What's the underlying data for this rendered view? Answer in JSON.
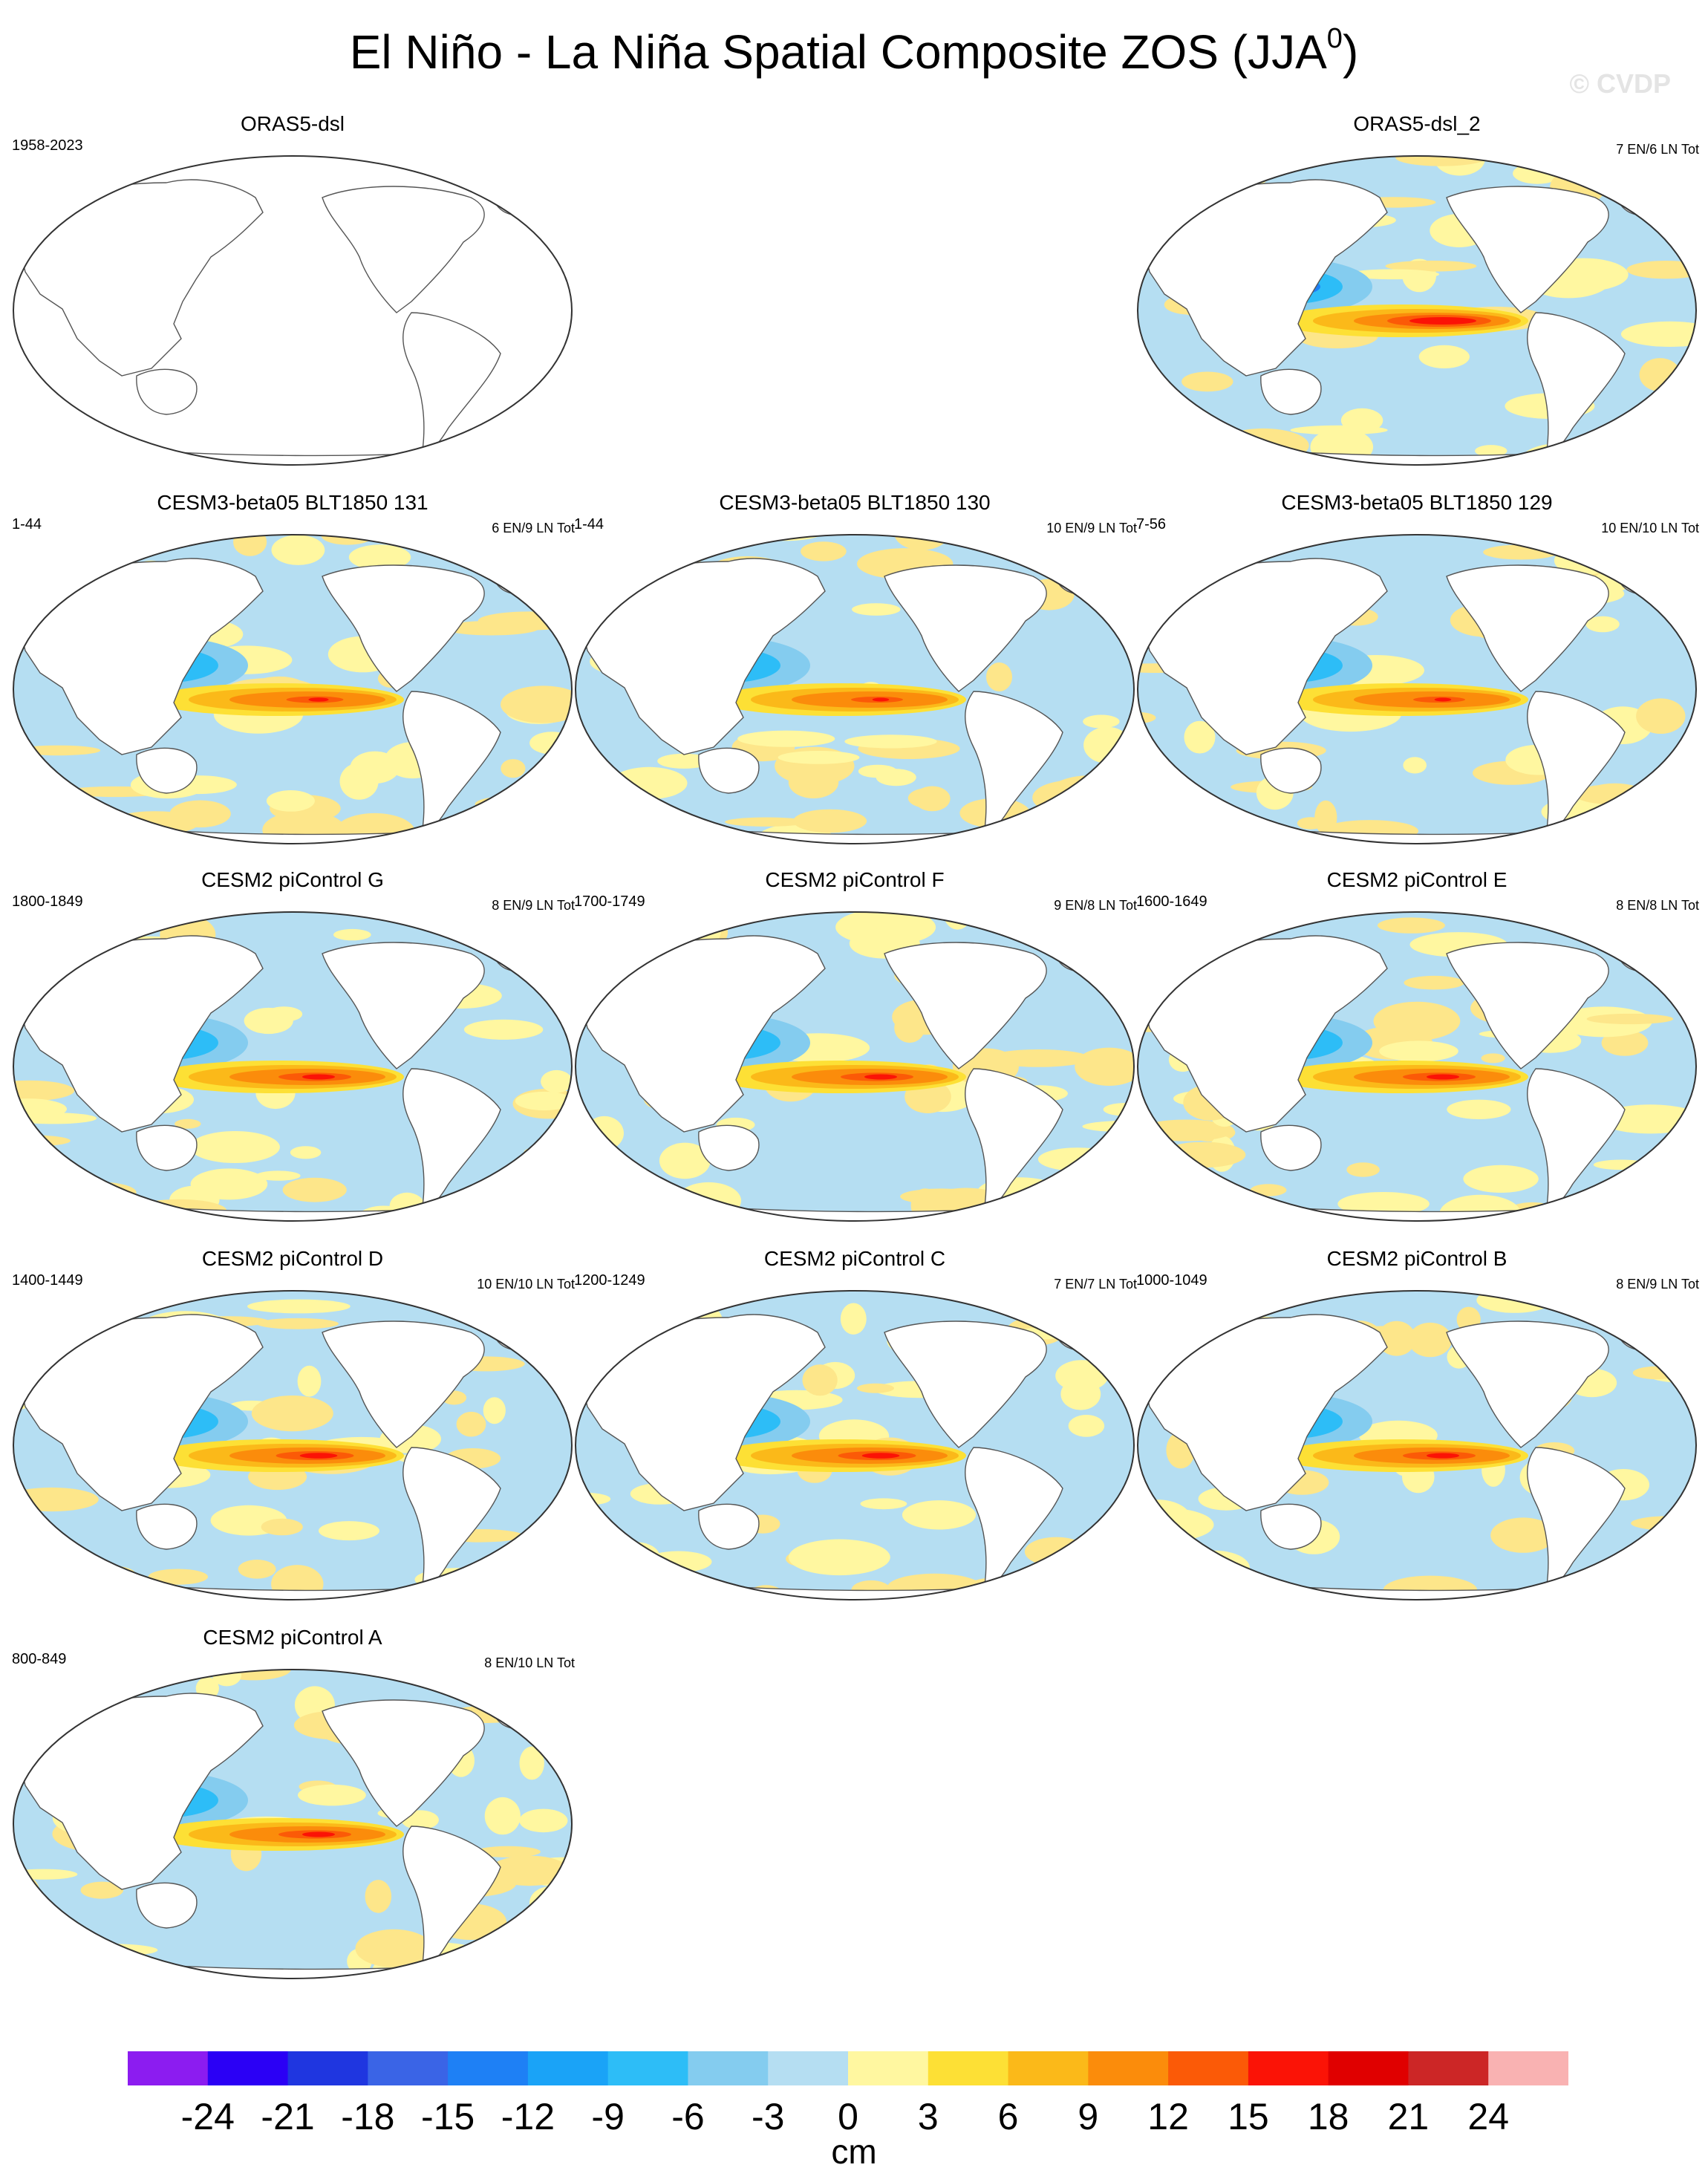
{
  "title_main": "El Niño - La Niña Spatial Composite ZOS (JJA",
  "title_sup": "0",
  "title_end": ")",
  "watermark": "© CVDP",
  "panels": [
    {
      "title": "ORAS5-dsl",
      "left_label": "1958-2023",
      "right_label": "",
      "fill": false
    },
    {
      "title": "ORAS5-dsl_2",
      "left_label": "",
      "right_label": "7 EN/6 LN Tot",
      "fill": true,
      "intensity": 1.0
    },
    {
      "title": "CESM3-beta05 BLT1850 131",
      "left_label": "1-44",
      "right_label": "6 EN/9 LN Tot",
      "fill": true,
      "intensity": 0.55
    },
    {
      "title": "CESM3-beta05 BLT1850 130",
      "left_label": "1-44",
      "right_label": "10 EN/9 LN Tot",
      "fill": true,
      "intensity": 0.5
    },
    {
      "title": "CESM3-beta05 BLT1850 129",
      "left_label": "7-56",
      "right_label": "10 EN/10 LN Tot",
      "fill": true,
      "intensity": 0.5
    },
    {
      "title": "CESM2 piControl G",
      "left_label": "1800-1849",
      "right_label": "8 EN/9 LN Tot",
      "fill": true,
      "intensity": 0.7
    },
    {
      "title": "CESM2 piControl F",
      "left_label": "1700-1749",
      "right_label": "9 EN/8 LN Tot",
      "fill": true,
      "intensity": 0.7
    },
    {
      "title": "CESM2 piControl E",
      "left_label": "1600-1649",
      "right_label": "8 EN/8 LN Tot",
      "fill": true,
      "intensity": 0.7
    },
    {
      "title": "CESM2 piControl D",
      "left_label": "1400-1449",
      "right_label": "10 EN/10 LN Tot",
      "fill": true,
      "intensity": 0.75
    },
    {
      "title": "CESM2 piControl C",
      "left_label": "1200-1249",
      "right_label": "7 EN/7 LN Tot",
      "fill": true,
      "intensity": 0.75
    },
    {
      "title": "CESM2 piControl B",
      "left_label": "1000-1049",
      "right_label": "8 EN/9 LN Tot",
      "fill": true,
      "intensity": 0.7
    },
    {
      "title": "CESM2 piControl A",
      "left_label": "800-849",
      "right_label": "8 EN/10 LN Tot",
      "fill": true,
      "intensity": 0.7
    }
  ],
  "colorbar": {
    "colors": [
      "#8c1cf0",
      "#2b00f5",
      "#1f36e0",
      "#3a64e6",
      "#1e80f5",
      "#1aa3f7",
      "#2dbdf7",
      "#84ccef",
      "#b5def2",
      "#fff7a0",
      "#fde035",
      "#fbb919",
      "#fb8c0b",
      "#fb5a07",
      "#fb1306",
      "#e00000",
      "#cc2626",
      "#f9b2b2"
    ],
    "ticks": [
      "-24",
      "-21",
      "-18",
      "-15",
      "-12",
      "-9",
      "-6",
      "-3",
      "0",
      "3",
      "6",
      "9",
      "12",
      "15",
      "18",
      "21",
      "24"
    ],
    "units": "cm"
  }
}
